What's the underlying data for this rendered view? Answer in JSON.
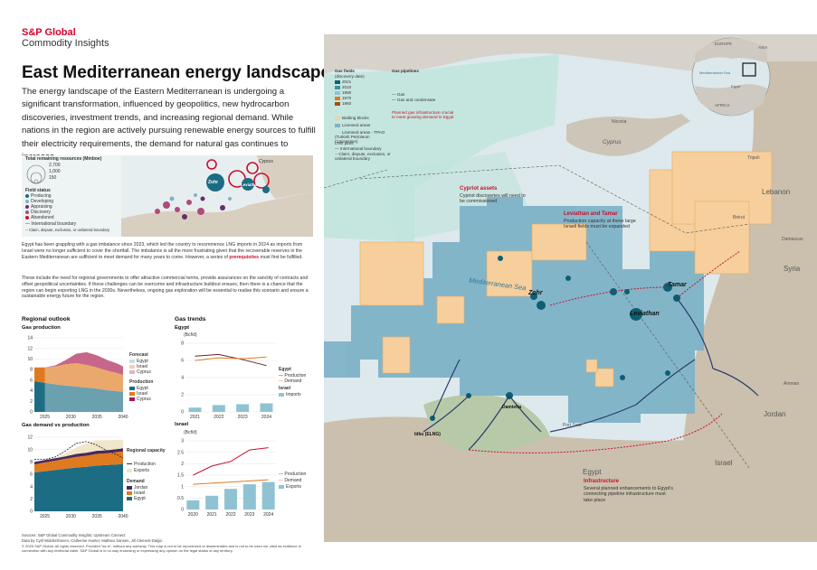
{
  "brand": {
    "line1": "S&P Global",
    "line2": "Commodity Insights"
  },
  "title": "East Mediterranean energy landscape",
  "intro": "The energy landscape of the Eastern Mediterranean is undergoing a significant transformation, influenced by geopolitics, new hydrocarbon discoveries, investment trends, and increasing regional demand. While nations in the region are actively pursuing renewable energy sources to fulfill their electricity requirements, the demand for natural gas continues to increase.",
  "para1": {
    "before": "Egypt has been grappling with a gas imbalance since 2023, which led the country to recommence LNG imports in 2024 as imports from Israel were no longer sufficient to cover the shortfall. The imbalance is all the more frustrating given that the recoverable reserves in the Eastern Mediterranean are sufficient to meet demand for many years to come. However, a series of ",
    "highlight": "prerequisites",
    "after": " must first be fulfilled."
  },
  "para2": "These include the need for regional governments to offer attractive commercial terms, provide assurances on the sanctity of contracts and offset geopolitical uncertainties. If these challenges can be overcome and infrastructure buildout ensues, then there is a chance that the region can begin exporting LNG in the 2030s. Nevertheless, ongoing gas exploration will be essential to realise this scenario and ensure a sustainable energy future for the region.",
  "mini_map": {
    "legend_title": "Total remaining resources (Mmboe)",
    "sizes": [
      "2,700",
      "1,000",
      "150"
    ],
    "status_title": "Field status",
    "status": [
      "Producing",
      "Developing",
      "Appraising",
      "Discovery",
      "Abandoned"
    ],
    "lines": [
      "International boundary",
      "Claim, dispute, exclusion, or unilateral boundary"
    ],
    "place": "Cyprus",
    "fields": [
      "Zohr",
      "Leviathan"
    ]
  },
  "regional_outlook": {
    "header": "Regional outlook",
    "gas_production": {
      "title": "Gas production",
      "x_ticks": [
        "2025",
        "2030",
        "2035",
        "2040"
      ],
      "y_ticks": [
        "0",
        "2",
        "4",
        "6",
        "8",
        "10",
        "12",
        "14"
      ],
      "forecast_label": "Forecast",
      "forecast_items": [
        "Egypt",
        "Israel",
        "Cyprus"
      ],
      "production_label": "Production",
      "production_items": [
        "Egypt",
        "Israel",
        "Cyprus"
      ]
    },
    "gas_demand": {
      "title": "Gas demand vs production",
      "x_ticks": [
        "2025",
        "2030",
        "2035",
        "2040"
      ],
      "y_ticks": [
        "0",
        "2",
        "4",
        "6",
        "8",
        "10",
        "12"
      ],
      "capacity_label": "Regional capacity",
      "capacity_items": [
        "Production",
        "Exports"
      ],
      "demand_label": "Demand",
      "demand_items": [
        "Jordan",
        "Israel",
        "Egypt"
      ]
    }
  },
  "gas_trends": {
    "header": "Gas trends",
    "egypt": {
      "title": "Egypt",
      "unit": "(Bcf/d)",
      "y_ticks": [
        "0",
        "2",
        "4",
        "6",
        "8"
      ],
      "x_ticks": [
        "2021",
        "2022",
        "2023",
        "2024"
      ],
      "legend_title": "Egypt",
      "legend": [
        "Production",
        "Demand"
      ],
      "legend2_title": "Israel",
      "legend2": [
        "Imports"
      ]
    },
    "israel": {
      "title": "Israel",
      "unit": "(Bcf/d)",
      "y_ticks": [
        "0",
        "0.5",
        "1",
        "1.5",
        "2",
        "2.5",
        "3"
      ],
      "x_ticks": [
        "2020",
        "2021",
        "2022",
        "2023",
        "2024"
      ],
      "legend": [
        "Production",
        "Demand",
        "Exports"
      ]
    }
  },
  "chart_data": [
    {
      "type": "area",
      "title": "Gas production",
      "x": [
        2023,
        2025,
        2027,
        2029,
        2031,
        2033,
        2035,
        2037,
        2039,
        2040
      ],
      "series": [
        {
          "name": "Egypt",
          "values": [
            5.8,
            5.5,
            5.2,
            5.0,
            4.8,
            4.6,
            4.4,
            4.1,
            3.9,
            3.8
          ]
        },
        {
          "name": "Israel",
          "values": [
            2.6,
            2.9,
            3.4,
            4.0,
            4.4,
            4.3,
            4.0,
            3.7,
            3.4,
            3.2
          ]
        },
        {
          "name": "Cyprus",
          "values": [
            0,
            0,
            0.2,
            0.8,
            1.8,
            2.4,
            2.3,
            2.0,
            1.8,
            1.6
          ]
        }
      ],
      "ylim": [
        0,
        14
      ]
    },
    {
      "type": "area",
      "title": "Gas demand vs production",
      "x": [
        2023,
        2025,
        2027,
        2029,
        2031,
        2033,
        2035,
        2037,
        2039,
        2040
      ],
      "series": [
        {
          "name": "Egypt",
          "values": [
            6.3,
            6.5,
            6.7,
            6.9,
            7.1,
            7.2,
            7.4,
            7.5,
            7.6,
            7.7
          ]
        },
        {
          "name": "Israel",
          "values": [
            1.3,
            1.4,
            1.5,
            1.6,
            1.7,
            1.8,
            1.9,
            1.9,
            2.0,
            2.0
          ]
        },
        {
          "name": "Jordan",
          "values": [
            0.4,
            0.4,
            0.4,
            0.4,
            0.5,
            0.5,
            0.5,
            0.5,
            0.5,
            0.5
          ]
        },
        {
          "name": "Exports",
          "values": [
            0,
            0,
            0,
            0.5,
            1.0,
            1.5,
            1.7,
            1.6,
            1.5,
            1.4
          ]
        }
      ],
      "ylim": [
        0,
        12
      ]
    },
    {
      "type": "line",
      "title": "Egypt",
      "x": [
        2021,
        2022,
        2023,
        2024
      ],
      "series": [
        {
          "name": "Production",
          "values": [
            6.5,
            6.7,
            6.1,
            5.4
          ]
        },
        {
          "name": "Demand",
          "values": [
            6.0,
            6.3,
            6.2,
            6.4
          ]
        },
        {
          "name": "Imports",
          "values": [
            0.5,
            0.8,
            0.9,
            1.0
          ]
        }
      ],
      "ylim": [
        0,
        8
      ]
    },
    {
      "type": "line",
      "title": "Israel",
      "x": [
        2020,
        2021,
        2022,
        2023,
        2024
      ],
      "series": [
        {
          "name": "Production",
          "values": [
            1.5,
            1.9,
            2.1,
            2.6,
            2.7
          ]
        },
        {
          "name": "Demand",
          "values": [
            1.1,
            1.15,
            1.2,
            1.25,
            1.3
          ]
        },
        {
          "name": "Exports",
          "values": [
            0.4,
            0.6,
            0.9,
            1.1,
            1.2
          ]
        }
      ],
      "ylim": [
        0,
        3
      ]
    }
  ],
  "map": {
    "countries": [
      "Cyprus",
      "Lebanon",
      "Syria",
      "Israel",
      "Jordan",
      "Egypt"
    ],
    "sea": "Mediterranean Sea",
    "inset": {
      "labels": [
        "EUROPE",
        "ASIA",
        "AFRICA",
        "Mediterranean Sea",
        "Egypt"
      ]
    },
    "legend": {
      "fields_title": "Gas fields",
      "fields_sub": "(discovery date)",
      "fields": [
        {
          "label": "2021",
          "color": "#0c5f73"
        },
        {
          "label": "2010",
          "color": "#3b8fa6"
        },
        {
          "label": "1980",
          "color": "#8fc3d3"
        },
        {
          "label": "1970",
          "color": "#e07a1e"
        },
        {
          "label": "1960",
          "color": "#a64d0f"
        }
      ],
      "pipelines_title": "Gas pipelines",
      "pipelines": [
        "Gas",
        "Gas and condensate"
      ],
      "planned": "Planned gas infrastructure crucial to meet growing demand in Egypt",
      "blocks": [
        "Bidding blocks",
        "Licensed areas",
        "Licensed areas - TPAO (Turkish Petroleum Corporation)",
        "LNG plant",
        "International boundary",
        "Claim, dispute, exclusion, or unilateral boundary"
      ]
    },
    "fields": [
      "Zohr",
      "Leviathan",
      "Tamar"
    ],
    "callouts": [
      {
        "title": "Cypriot assets",
        "text": "Cypriot discoveries will need to be commissioned"
      },
      {
        "title": "Leviathan and Tamar",
        "text": "Production capacity at these large Israeli fields must be expanded"
      },
      {
        "title": "Infrastructure",
        "text": "Several planned enhancements to Egypt's connecting pipeline infrastructure must take place"
      }
    ],
    "places": [
      "Damietta",
      "Idku (ELNG)",
      "Nicosia",
      "Tripoli",
      "Beirut",
      "Damascus",
      "Amman",
      "Port Said"
    ]
  },
  "sources": "Sources: S&P Global Commodity Insights; Upstream Connect",
  "credits": "Data by Cyril Widdershoven, Catherine Hunter, Mathieu Sansen, Jill Clement-Dalgic",
  "copyright": "© 2025 S&P Global. All rights reserved. Provided \"as is\", without any warranty. This map is not to be reproduced or disseminated and is not to be used nor cited as evidence in connection with any territorial claim. S&P Global is in no way endorsing or expressing any opinion on the legal status of any territory."
}
